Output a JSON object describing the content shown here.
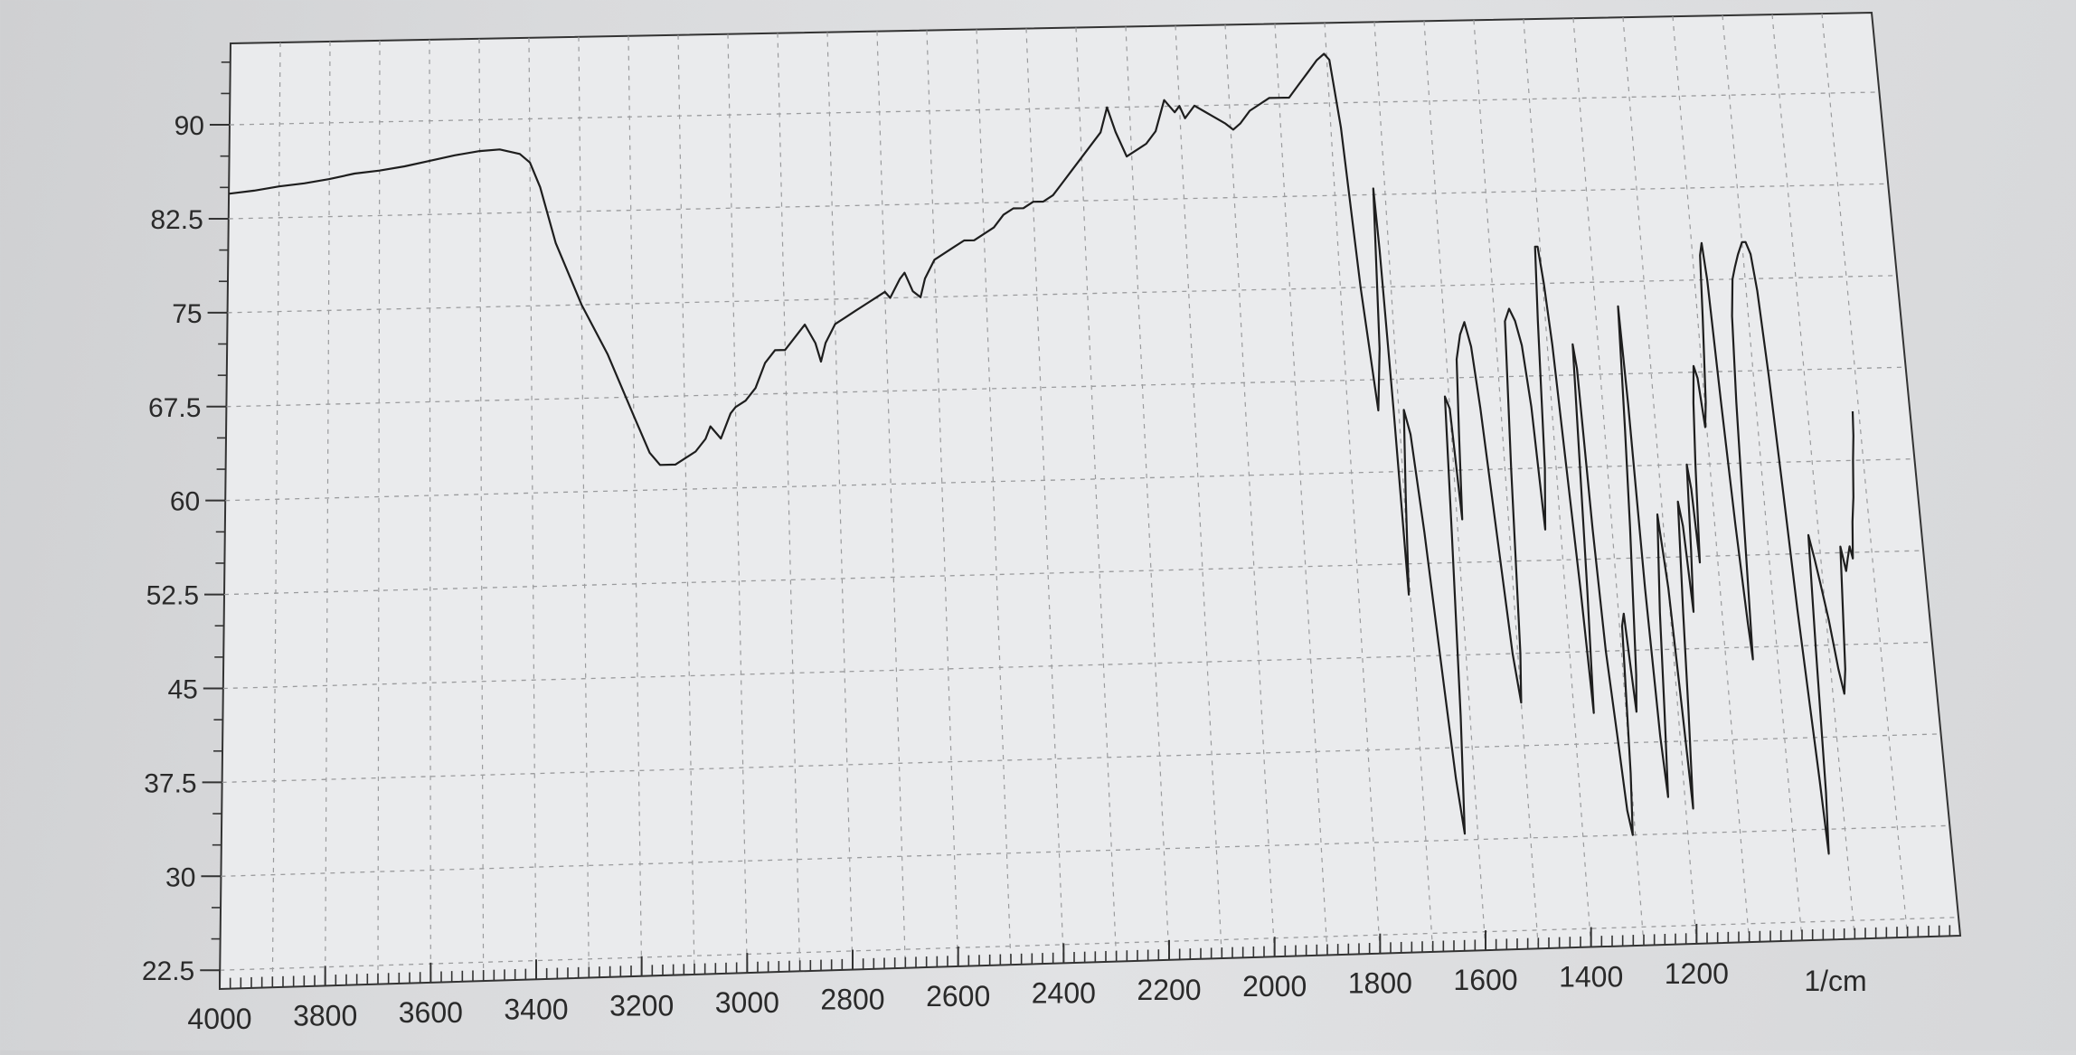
{
  "chart_data": {
    "type": "line",
    "xlabel": "1/cm",
    "ylabel": "",
    "x_reversed": true,
    "xlim": [
      4000,
      700
    ],
    "ylim": [
      21,
      96.5
    ],
    "grid": true,
    "x_ticks": [
      4000,
      3800,
      3600,
      3400,
      3200,
      3000,
      2800,
      2600,
      2400,
      2200,
      2000,
      1800,
      1600,
      1400,
      1200
    ],
    "x_tick_labels": [
      "4000",
      "3800",
      "3600",
      "3400",
      "3200",
      "3000",
      "2800",
      "2600",
      "2400",
      "2200",
      "2000",
      "1800",
      "1600",
      "1400",
      "1200"
    ],
    "y_ticks": [
      22.5,
      30,
      37.5,
      45,
      52.5,
      60,
      67.5,
      75,
      82.5,
      90
    ],
    "y_tick_labels": [
      "22.5",
      "30",
      "37.5",
      "45",
      "52.5",
      "60",
      "67.5",
      "75",
      "82.5",
      "90"
    ],
    "series": [
      {
        "points": [
          [
            4000,
            84.5
          ],
          [
            3950,
            84.7
          ],
          [
            3900,
            85
          ],
          [
            3850,
            85.2
          ],
          [
            3800,
            85.5
          ],
          [
            3750,
            85.9
          ],
          [
            3700,
            86.1
          ],
          [
            3650,
            86.4
          ],
          [
            3600,
            86.8
          ],
          [
            3550,
            87.2
          ],
          [
            3500,
            87.5
          ],
          [
            3460,
            87.6
          ],
          [
            3420,
            87.2
          ],
          [
            3400,
            86.5
          ],
          [
            3380,
            84.5
          ],
          [
            3350,
            80
          ],
          [
            3300,
            75
          ],
          [
            3250,
            71
          ],
          [
            3200,
            66
          ],
          [
            3170,
            63
          ],
          [
            3150,
            62
          ],
          [
            3120,
            62
          ],
          [
            3100,
            62.5
          ],
          [
            3080,
            63
          ],
          [
            3060,
            64
          ],
          [
            3050,
            65
          ],
          [
            3030,
            64
          ],
          [
            3010,
            66
          ],
          [
            3000,
            66.5
          ],
          [
            2980,
            67
          ],
          [
            2960,
            68
          ],
          [
            2940,
            70
          ],
          [
            2920,
            71
          ],
          [
            2900,
            71
          ],
          [
            2880,
            72
          ],
          [
            2860,
            73
          ],
          [
            2840,
            71.5
          ],
          [
            2830,
            70
          ],
          [
            2820,
            71.5
          ],
          [
            2800,
            73
          ],
          [
            2780,
            73.5
          ],
          [
            2760,
            74
          ],
          [
            2740,
            74.5
          ],
          [
            2720,
            75
          ],
          [
            2700,
            75.5
          ],
          [
            2690,
            75
          ],
          [
            2670,
            76.5
          ],
          [
            2660,
            77
          ],
          [
            2645,
            75.5
          ],
          [
            2630,
            75
          ],
          [
            2620,
            76.5
          ],
          [
            2600,
            78
          ],
          [
            2580,
            78.5
          ],
          [
            2560,
            79
          ],
          [
            2540,
            79.5
          ],
          [
            2520,
            79.5
          ],
          [
            2500,
            80
          ],
          [
            2480,
            80.5
          ],
          [
            2460,
            81.5
          ],
          [
            2440,
            82
          ],
          [
            2420,
            82
          ],
          [
            2400,
            82.5
          ],
          [
            2380,
            82.5
          ],
          [
            2360,
            83
          ],
          [
            2340,
            84
          ],
          [
            2320,
            85
          ],
          [
            2300,
            86
          ],
          [
            2280,
            87
          ],
          [
            2260,
            88
          ],
          [
            2245,
            90
          ],
          [
            2230,
            88
          ],
          [
            2210,
            86
          ],
          [
            2190,
            86.5
          ],
          [
            2170,
            87
          ],
          [
            2150,
            88
          ],
          [
            2130,
            90.5
          ],
          [
            2110,
            89.5
          ],
          [
            2100,
            90
          ],
          [
            2090,
            89
          ],
          [
            2070,
            90
          ],
          [
            2050,
            89.5
          ],
          [
            2030,
            89
          ],
          [
            2010,
            88.5
          ],
          [
            1995,
            88
          ],
          [
            1980,
            88.5
          ],
          [
            1960,
            89.5
          ],
          [
            1940,
            90
          ],
          [
            1920,
            90.5
          ],
          [
            1900,
            90.5
          ],
          [
            1880,
            90.5
          ],
          [
            1860,
            91.5
          ],
          [
            1840,
            92.5
          ],
          [
            1820,
            93.5
          ],
          [
            1805,
            94
          ],
          [
            1795,
            93.5
          ],
          [
            1780,
            88
          ],
          [
            1760,
            75
          ],
          [
            1740,
            65
          ],
          [
            1730,
            70
          ],
          [
            1723,
            83
          ],
          [
            1718,
            78
          ],
          [
            1710,
            65
          ],
          [
            1703,
            50
          ],
          [
            1697,
            58
          ],
          [
            1690,
            65
          ],
          [
            1680,
            63
          ],
          [
            1665,
            55
          ],
          [
            1650,
            45
          ],
          [
            1635,
            35
          ],
          [
            1625,
            30.5
          ],
          [
            1618,
            40
          ],
          [
            1612,
            55
          ],
          [
            1608,
            66
          ],
          [
            1600,
            65
          ],
          [
            1590,
            56
          ],
          [
            1585,
            63
          ],
          [
            1580,
            69
          ],
          [
            1570,
            71
          ],
          [
            1560,
            72
          ],
          [
            1550,
            70
          ],
          [
            1540,
            65
          ],
          [
            1525,
            55
          ],
          [
            1510,
            45
          ],
          [
            1500,
            41
          ],
          [
            1495,
            45
          ],
          [
            1488,
            60
          ],
          [
            1480,
            72
          ],
          [
            1470,
            73
          ],
          [
            1460,
            72
          ],
          [
            1450,
            70
          ],
          [
            1440,
            65
          ],
          [
            1430,
            55
          ],
          [
            1422,
            60
          ],
          [
            1415,
            72
          ],
          [
            1410,
            78
          ],
          [
            1405,
            78
          ],
          [
            1398,
            75
          ],
          [
            1390,
            70
          ],
          [
            1380,
            60
          ],
          [
            1370,
            50
          ],
          [
            1362,
            40
          ],
          [
            1357,
            50
          ],
          [
            1350,
            70
          ],
          [
            1345,
            68
          ],
          [
            1338,
            55
          ],
          [
            1330,
            45
          ],
          [
            1320,
            38
          ],
          [
            1312,
            32
          ],
          [
            1305,
            30
          ],
          [
            1300,
            35
          ],
          [
            1295,
            47
          ],
          [
            1290,
            48
          ],
          [
            1285,
            44
          ],
          [
            1280,
            40
          ],
          [
            1275,
            43
          ],
          [
            1265,
            55
          ],
          [
            1260,
            63
          ],
          [
            1255,
            73
          ],
          [
            1250,
            65
          ],
          [
            1245,
            50
          ],
          [
            1238,
            38
          ],
          [
            1232,
            33
          ],
          [
            1226,
            40
          ],
          [
            1220,
            48
          ],
          [
            1210,
            56
          ],
          [
            1200,
            50
          ],
          [
            1192,
            40
          ],
          [
            1186,
            32
          ],
          [
            1180,
            40
          ],
          [
            1175,
            48
          ],
          [
            1168,
            57
          ],
          [
            1162,
            55
          ],
          [
            1155,
            48
          ],
          [
            1150,
            53
          ],
          [
            1145,
            60
          ],
          [
            1140,
            58
          ],
          [
            1135,
            52
          ],
          [
            1128,
            60
          ],
          [
            1122,
            65
          ],
          [
            1116,
            68
          ],
          [
            1110,
            67
          ],
          [
            1103,
            63
          ],
          [
            1098,
            65
          ],
          [
            1090,
            72
          ],
          [
            1085,
            77
          ],
          [
            1080,
            78
          ],
          [
            1075,
            75
          ],
          [
            1068,
            65
          ],
          [
            1060,
            55
          ],
          [
            1052,
            47
          ],
          [
            1048,
            44
          ],
          [
            1043,
            55
          ],
          [
            1038,
            65
          ],
          [
            1032,
            72
          ],
          [
            1025,
            75
          ],
          [
            1018,
            76
          ],
          [
            1010,
            77
          ],
          [
            1000,
            78
          ],
          [
            993,
            78
          ],
          [
            985,
            77
          ],
          [
            978,
            74
          ],
          [
            970,
            67
          ],
          [
            962,
            58
          ],
          [
            954,
            48
          ],
          [
            946,
            40
          ],
          [
            940,
            34
          ],
          [
            935,
            28
          ],
          [
            930,
            33
          ],
          [
            925,
            45
          ],
          [
            920,
            54
          ],
          [
            912,
            52
          ],
          [
            905,
            50
          ],
          [
            895,
            47
          ],
          [
            885,
            43
          ],
          [
            878,
            41
          ],
          [
            872,
            43
          ],
          [
            866,
            48
          ],
          [
            860,
            53
          ],
          [
            853,
            51
          ],
          [
            848,
            52
          ],
          [
            842,
            53
          ],
          [
            838,
            52
          ],
          [
            832,
            55
          ],
          [
            826,
            57
          ],
          [
            820,
            60
          ],
          [
            815,
            62
          ],
          [
            812,
            64
          ]
        ]
      }
    ]
  }
}
